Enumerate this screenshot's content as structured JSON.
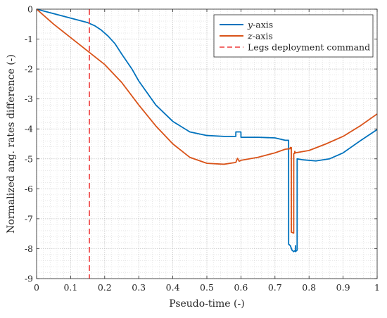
{
  "chart_data": {
    "type": "line",
    "xlabel": "Pseudo-time (-)",
    "ylabel": "Normalized ang. rates difference (-)",
    "xlim": [
      0,
      1
    ],
    "ylim": [
      -9,
      0
    ],
    "xticks": [
      0,
      0.1,
      0.2,
      0.3,
      0.4,
      0.5,
      0.6,
      0.7,
      0.8,
      0.9,
      1
    ],
    "xtick_labels": [
      "0",
      "0.1",
      "0.2",
      "0.3",
      "0.4",
      "0.5",
      "0.6",
      "0.7",
      "0.8",
      "0.9",
      "1"
    ],
    "yticks": [
      0,
      -1,
      -2,
      -3,
      -4,
      -5,
      -6,
      -7,
      -8,
      -9
    ],
    "ytick_labels": [
      "0",
      "-1",
      "-2",
      "-3",
      "-4",
      "-5",
      "-6",
      "-7",
      "-8",
      "-9"
    ],
    "grid": true,
    "minor_grid": true,
    "legend_position": "top-right",
    "series": [
      {
        "name_prefix": "y",
        "name_suffix": "-axis",
        "color": "#0072BD",
        "style": "solid",
        "x": [
          0,
          0.05,
          0.1,
          0.15,
          0.17,
          0.19,
          0.21,
          0.23,
          0.25,
          0.28,
          0.3,
          0.35,
          0.4,
          0.45,
          0.5,
          0.55,
          0.585,
          0.5851,
          0.6,
          0.6001,
          0.65,
          0.7,
          0.73,
          0.74,
          0.7401,
          0.745,
          0.75,
          0.755,
          0.76,
          0.7601,
          0.7602,
          0.765,
          0.7651,
          0.78,
          0.82,
          0.86,
          0.9,
          0.95,
          1.0
        ],
        "y": [
          0,
          -0.15,
          -0.3,
          -0.45,
          -0.55,
          -0.7,
          -0.9,
          -1.15,
          -1.5,
          -2.0,
          -2.4,
          -3.2,
          -3.75,
          -4.1,
          -4.22,
          -4.25,
          -4.25,
          -4.1,
          -4.1,
          -4.28,
          -4.28,
          -4.3,
          -4.38,
          -4.38,
          -7.85,
          -7.9,
          -8.05,
          -8.1,
          -8.05,
          -7.9,
          -8.1,
          -8.05,
          -5.0,
          -5.03,
          -5.07,
          -5.0,
          -4.8,
          -4.4,
          -4.02
        ]
      },
      {
        "name_prefix": "z",
        "name_suffix": "-axis",
        "color": "#D95319",
        "style": "solid",
        "x": [
          0,
          0.05,
          0.1,
          0.15,
          0.2,
          0.25,
          0.3,
          0.35,
          0.4,
          0.45,
          0.5,
          0.55,
          0.585,
          0.59,
          0.595,
          0.6,
          0.65,
          0.7,
          0.73,
          0.745,
          0.7451,
          0.748,
          0.7481,
          0.755,
          0.7551,
          0.758,
          0.7581,
          0.76,
          0.77,
          0.8,
          0.85,
          0.9,
          0.95,
          1.0
        ],
        "y": [
          0,
          -0.5,
          -0.95,
          -1.4,
          -1.85,
          -2.45,
          -3.2,
          -3.9,
          -4.5,
          -4.95,
          -5.15,
          -5.18,
          -5.12,
          -4.98,
          -5.08,
          -5.05,
          -4.95,
          -4.8,
          -4.68,
          -4.66,
          -4.62,
          -4.62,
          -7.45,
          -7.48,
          -4.82,
          -4.82,
          -4.75,
          -4.8,
          -4.78,
          -4.72,
          -4.5,
          -4.25,
          -3.9,
          -3.5
        ]
      }
    ],
    "reference_line": {
      "label": "Legs deployment command",
      "x": 0.155,
      "color": "#EE3B3B",
      "style": "dashed"
    }
  }
}
